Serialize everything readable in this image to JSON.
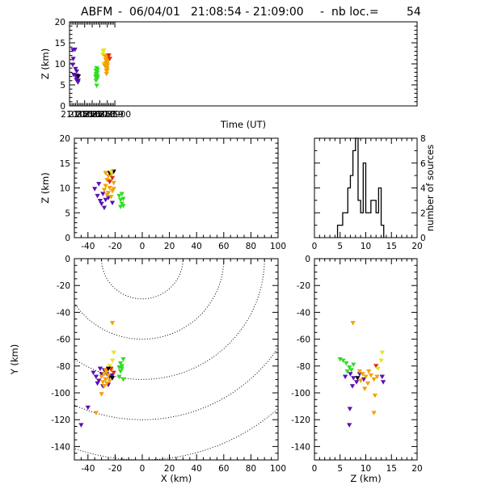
{
  "title": {
    "station": "ABFM",
    "date": "06/04/01",
    "time_range": "21:08:54 - 21:09:00",
    "count_label": "nb loc.=",
    "count": "54"
  },
  "palette": {
    "purple": "#5a10b0",
    "orange": "#f3a200",
    "green": "#33dd22",
    "yellow": "#e6e620",
    "red": "#e02a10",
    "black": "#000000"
  },
  "chart_data": [
    {
      "id": "time-height",
      "type": "scatter",
      "xlabel": "Time (UT)",
      "ylabel": "Z (km)",
      "xlim": [
        210854.0,
        210900.0
      ],
      "ylim": [
        0,
        20
      ],
      "x_ticks": [
        {
          "v": 210855,
          "label": "210855"
        },
        {
          "v": 210856,
          "label": "210856"
        },
        {
          "v": 210857,
          "label": "210857"
        },
        {
          "v": 210858,
          "label": "210858"
        },
        {
          "v": 210859,
          "label": "210859"
        },
        {
          "v": 210860,
          "label": "210900"
        }
      ],
      "y_ticks": [
        0,
        5,
        10,
        15,
        20
      ],
      "points": [
        {
          "t": 210854.45,
          "z": 13.3,
          "c": "purple"
        },
        {
          "t": 210854.72,
          "z": 13.4,
          "c": "purple"
        },
        {
          "t": 210854.42,
          "z": 9.8,
          "c": "purple"
        },
        {
          "t": 210854.5,
          "z": 11.2,
          "c": "purple"
        },
        {
          "t": 210854.55,
          "z": 7.4,
          "c": "purple"
        },
        {
          "t": 210854.8,
          "z": 8.8,
          "c": "purple"
        },
        {
          "t": 210854.88,
          "z": 7.0,
          "c": "purple"
        },
        {
          "t": 210854.9,
          "z": 6.2,
          "c": "purple"
        },
        {
          "t": 210854.95,
          "z": 8.2,
          "c": "purple"
        },
        {
          "t": 210854.98,
          "z": 6.6,
          "c": "purple"
        },
        {
          "t": 210855.02,
          "z": 7.2,
          "c": "purple"
        },
        {
          "t": 210855.08,
          "z": 6.8,
          "c": "purple"
        },
        {
          "t": 210855.12,
          "z": 5.6,
          "c": "purple"
        },
        {
          "t": 210855.16,
          "z": 6.0,
          "c": "purple"
        },
        {
          "t": 210855.18,
          "z": 7.0,
          "c": "black"
        },
        {
          "t": 210857.45,
          "z": 7.0,
          "c": "green"
        },
        {
          "t": 210857.48,
          "z": 8.4,
          "c": "green"
        },
        {
          "t": 210857.5,
          "z": 6.0,
          "c": "green"
        },
        {
          "t": 210857.52,
          "z": 7.6,
          "c": "green"
        },
        {
          "t": 210857.55,
          "z": 6.6,
          "c": "green"
        },
        {
          "t": 210857.58,
          "z": 9.0,
          "c": "green"
        },
        {
          "t": 210857.6,
          "z": 4.8,
          "c": "green"
        },
        {
          "t": 210857.62,
          "z": 7.2,
          "c": "green"
        },
        {
          "t": 210857.65,
          "z": 6.4,
          "c": "green"
        },
        {
          "t": 210857.68,
          "z": 7.9,
          "c": "green"
        },
        {
          "t": 210857.7,
          "z": 8.6,
          "c": "green"
        },
        {
          "t": 210857.72,
          "z": 6.9,
          "c": "green"
        },
        {
          "t": 210858.4,
          "z": 12.2,
          "c": "yellow"
        },
        {
          "t": 210858.45,
          "z": 13.0,
          "c": "yellow"
        },
        {
          "t": 210858.55,
          "z": 13.2,
          "c": "yellow"
        },
        {
          "t": 210858.52,
          "z": 10.0,
          "c": "yellow"
        },
        {
          "t": 210858.65,
          "z": 9.6,
          "c": "orange"
        },
        {
          "t": 210858.72,
          "z": 11.8,
          "c": "orange"
        },
        {
          "t": 210858.78,
          "z": 11.0,
          "c": "orange"
        },
        {
          "t": 210858.8,
          "z": 10.2,
          "c": "orange"
        },
        {
          "t": 210858.84,
          "z": 9.4,
          "c": "orange"
        },
        {
          "t": 210858.86,
          "z": 8.4,
          "c": "orange"
        },
        {
          "t": 210858.88,
          "z": 10.8,
          "c": "orange"
        },
        {
          "t": 210858.9,
          "z": 7.6,
          "c": "orange"
        },
        {
          "t": 210858.92,
          "z": 9.0,
          "c": "orange"
        },
        {
          "t": 210858.95,
          "z": 11.6,
          "c": "orange"
        },
        {
          "t": 210858.97,
          "z": 8.8,
          "c": "orange"
        },
        {
          "t": 210859.0,
          "z": 10.0,
          "c": "orange"
        },
        {
          "t": 210859.02,
          "z": 9.6,
          "c": "orange"
        },
        {
          "t": 210859.05,
          "z": 12.0,
          "c": "orange"
        },
        {
          "t": 210859.1,
          "z": 10.8,
          "c": "orange"
        },
        {
          "t": 210859.16,
          "z": 11.8,
          "c": "orange"
        },
        {
          "t": 210858.98,
          "z": 8.4,
          "c": "orange"
        },
        {
          "t": 210859.2,
          "z": 12.0,
          "c": "red"
        },
        {
          "t": 210859.33,
          "z": 11.2,
          "c": "red"
        }
      ]
    },
    {
      "id": "x-height",
      "type": "scatter",
      "xlabel": "",
      "ylabel": "Z (km)",
      "xlim": [
        -50,
        100
      ],
      "ylim": [
        0,
        20
      ],
      "x_ticks": [
        -40,
        -20,
        0,
        20,
        40,
        60,
        80,
        100
      ],
      "y_ticks": [
        0,
        5,
        10,
        15,
        20
      ],
      "points": [
        {
          "x": -35,
          "z": 9.8,
          "c": "purple"
        },
        {
          "x": -33,
          "z": 8.4,
          "c": "purple"
        },
        {
          "x": -31,
          "z": 7.4,
          "c": "purple"
        },
        {
          "x": -32,
          "z": 10.8,
          "c": "purple"
        },
        {
          "x": -29,
          "z": 8.8,
          "c": "purple"
        },
        {
          "x": -30,
          "z": 6.8,
          "c": "purple"
        },
        {
          "x": -27,
          "z": 7.6,
          "c": "purple"
        },
        {
          "x": -28,
          "z": 6.0,
          "c": "purple"
        },
        {
          "x": -25,
          "z": 8.0,
          "c": "purple"
        },
        {
          "x": -22,
          "z": 7.0,
          "c": "purple"
        },
        {
          "x": -26,
          "z": 11.6,
          "c": "orange"
        },
        {
          "x": -28,
          "z": 9.6,
          "c": "orange"
        },
        {
          "x": -27,
          "z": 10.4,
          "c": "orange"
        },
        {
          "x": -25,
          "z": 9.0,
          "c": "orange"
        },
        {
          "x": -26,
          "z": 8.6,
          "c": "orange"
        },
        {
          "x": -24,
          "z": 10.0,
          "c": "orange"
        },
        {
          "x": -22,
          "z": 9.4,
          "c": "orange"
        },
        {
          "x": -21,
          "z": 11.0,
          "c": "orange"
        },
        {
          "x": -23,
          "z": 12.6,
          "c": "orange"
        },
        {
          "x": -24,
          "z": 11.4,
          "c": "orange"
        },
        {
          "x": -23,
          "z": 8.2,
          "c": "orange"
        },
        {
          "x": -21,
          "z": 9.8,
          "c": "orange"
        },
        {
          "x": -25,
          "z": 12.4,
          "c": "orange"
        },
        {
          "x": -27,
          "z": 13.0,
          "c": "orange"
        },
        {
          "x": -24,
          "z": 13.0,
          "c": "black"
        },
        {
          "x": -21,
          "z": 13.3,
          "c": "black"
        },
        {
          "x": -24,
          "z": 11.2,
          "c": "red"
        },
        {
          "x": -22,
          "z": 12.0,
          "c": "red"
        },
        {
          "x": -23,
          "z": 13.2,
          "c": "yellow"
        },
        {
          "x": -17,
          "z": 8.4,
          "c": "green"
        },
        {
          "x": -16,
          "z": 7.6,
          "c": "green"
        },
        {
          "x": -15,
          "z": 6.8,
          "c": "green"
        },
        {
          "x": -14,
          "z": 7.8,
          "c": "green"
        },
        {
          "x": -16,
          "z": 6.2,
          "c": "green"
        },
        {
          "x": -15,
          "z": 8.8,
          "c": "green"
        },
        {
          "x": -14,
          "z": 6.4,
          "c": "green"
        }
      ]
    },
    {
      "id": "height-histogram",
      "type": "bar",
      "xlabel": "",
      "ylabel": "number of sources",
      "xlim": [
        0,
        20
      ],
      "ylim": [
        0,
        8
      ],
      "x_ticks": [
        0,
        5,
        10,
        15,
        20
      ],
      "y_ticks": [
        0,
        2,
        4,
        6,
        8
      ],
      "bin_edges": [
        4.5,
        5.0,
        5.5,
        6.0,
        6.5,
        7.0,
        7.5,
        8.0,
        8.5,
        9.0,
        9.5,
        10.0,
        10.5,
        11.0,
        11.5,
        12.0,
        12.5,
        13.0,
        13.5
      ],
      "counts": [
        1,
        1,
        2,
        2,
        4,
        5,
        7,
        8,
        3,
        2,
        6,
        2,
        2,
        3,
        3,
        2,
        4,
        1
      ]
    },
    {
      "id": "plan-view",
      "type": "scatter",
      "xlabel": "X (km)",
      "ylabel": "Y (km)",
      "xlim": [
        -50,
        100
      ],
      "ylim": [
        -150,
        0
      ],
      "x_ticks": [
        -40,
        -20,
        0,
        20,
        40,
        60,
        80,
        100
      ],
      "y_ticks": [
        -140,
        -120,
        -100,
        -80,
        -60,
        -40,
        -20,
        0
      ],
      "range_rings_km": [
        30,
        60,
        90,
        120,
        150
      ],
      "points": [
        {
          "x": -45,
          "y": -124,
          "c": "purple"
        },
        {
          "x": -40,
          "y": -111,
          "c": "purple"
        },
        {
          "x": -36,
          "y": -85,
          "c": "purple"
        },
        {
          "x": -34,
          "y": -88,
          "c": "purple"
        },
        {
          "x": -33,
          "y": -93,
          "c": "purple"
        },
        {
          "x": -31,
          "y": -82,
          "c": "purple"
        },
        {
          "x": -32,
          "y": -91,
          "c": "purple"
        },
        {
          "x": -30,
          "y": -86,
          "c": "purple"
        },
        {
          "x": -29,
          "y": -95,
          "c": "purple"
        },
        {
          "x": -28,
          "y": -83,
          "c": "purple"
        },
        {
          "x": -27,
          "y": -90,
          "c": "purple"
        },
        {
          "x": -26,
          "y": -86,
          "c": "purple"
        },
        {
          "x": -25,
          "y": -94,
          "c": "purple"
        },
        {
          "x": -24,
          "y": -88,
          "c": "purple"
        },
        {
          "x": -22,
          "y": -87,
          "c": "purple"
        },
        {
          "x": -34,
          "y": -115,
          "c": "orange"
        },
        {
          "x": -30,
          "y": -101,
          "c": "orange"
        },
        {
          "x": -30,
          "y": -88,
          "c": "orange"
        },
        {
          "x": -29,
          "y": -92,
          "c": "orange"
        },
        {
          "x": -28,
          "y": -86,
          "c": "orange"
        },
        {
          "x": -27,
          "y": -90,
          "c": "orange"
        },
        {
          "x": -28,
          "y": -95,
          "c": "orange"
        },
        {
          "x": -26,
          "y": -84,
          "c": "orange"
        },
        {
          "x": -27,
          "y": -83,
          "c": "orange"
        },
        {
          "x": -25,
          "y": -87,
          "c": "orange"
        },
        {
          "x": -26,
          "y": -93,
          "c": "orange"
        },
        {
          "x": -24,
          "y": -91,
          "c": "orange"
        },
        {
          "x": -23,
          "y": -83,
          "c": "orange"
        },
        {
          "x": -22,
          "y": -48,
          "c": "orange"
        },
        {
          "x": -22,
          "y": -76,
          "c": "yellow"
        },
        {
          "x": -21,
          "y": -70,
          "c": "yellow"
        },
        {
          "x": -24,
          "y": -80,
          "c": "yellow"
        },
        {
          "x": -23,
          "y": -82,
          "c": "red"
        },
        {
          "x": -21,
          "y": -85,
          "c": "red"
        },
        {
          "x": -22,
          "y": -89,
          "c": "black"
        },
        {
          "x": -25,
          "y": -82,
          "c": "black"
        },
        {
          "x": -17,
          "y": -88,
          "c": "green"
        },
        {
          "x": -16,
          "y": -78,
          "c": "green"
        },
        {
          "x": -15,
          "y": -82,
          "c": "green"
        },
        {
          "x": -14,
          "y": -75,
          "c": "green"
        },
        {
          "x": -16,
          "y": -84,
          "c": "green"
        },
        {
          "x": -15,
          "y": -80,
          "c": "green"
        },
        {
          "x": -14,
          "y": -90,
          "c": "green"
        },
        {
          "x": -17,
          "y": -81,
          "c": "green"
        }
      ]
    },
    {
      "id": "height-y",
      "type": "scatter",
      "xlabel": "Z (km)",
      "ylabel": "",
      "xlim": [
        0,
        20
      ],
      "ylim": [
        -150,
        0
      ],
      "x_ticks": [
        0,
        5,
        10,
        15,
        20
      ],
      "y_ticks": [
        -140,
        -120,
        -100,
        -80,
        -60,
        -40,
        -20,
        0
      ],
      "points": [
        {
          "z": 7.5,
          "y": -48,
          "c": "orange"
        },
        {
          "z": 6.8,
          "y": -124,
          "c": "purple"
        },
        {
          "z": 6.9,
          "y": -112,
          "c": "purple"
        },
        {
          "z": 11.8,
          "y": -102,
          "c": "orange"
        },
        {
          "z": 11.6,
          "y": -115,
          "c": "orange"
        },
        {
          "z": 5.0,
          "y": -75,
          "c": "green"
        },
        {
          "z": 5.6,
          "y": -76,
          "c": "green"
        },
        {
          "z": 6.2,
          "y": -78,
          "c": "green"
        },
        {
          "z": 6.8,
          "y": -81,
          "c": "green"
        },
        {
          "z": 7.2,
          "y": -83,
          "c": "green"
        },
        {
          "z": 6.4,
          "y": -84,
          "c": "green"
        },
        {
          "z": 7.6,
          "y": -79,
          "c": "green"
        },
        {
          "z": 12.0,
          "y": -80,
          "c": "red"
        },
        {
          "z": 13.2,
          "y": -70,
          "c": "yellow"
        },
        {
          "z": 13.0,
          "y": -76,
          "c": "yellow"
        },
        {
          "z": 12.4,
          "y": -82,
          "c": "yellow"
        },
        {
          "z": 6.0,
          "y": -88,
          "c": "purple"
        },
        {
          "z": 7.0,
          "y": -86,
          "c": "purple"
        },
        {
          "z": 7.6,
          "y": -89,
          "c": "purple"
        },
        {
          "z": 8.2,
          "y": -92,
          "c": "purple"
        },
        {
          "z": 8.8,
          "y": -86,
          "c": "purple"
        },
        {
          "z": 7.4,
          "y": -95,
          "c": "purple"
        },
        {
          "z": 9.6,
          "y": -90,
          "c": "purple"
        },
        {
          "z": 8.8,
          "y": -84,
          "c": "orange"
        },
        {
          "z": 9.4,
          "y": -86,
          "c": "orange"
        },
        {
          "z": 10.0,
          "y": -88,
          "c": "orange"
        },
        {
          "z": 10.6,
          "y": -84,
          "c": "orange"
        },
        {
          "z": 11.0,
          "y": -87,
          "c": "orange"
        },
        {
          "z": 11.6,
          "y": -90,
          "c": "orange"
        },
        {
          "z": 9.0,
          "y": -91,
          "c": "orange"
        },
        {
          "z": 10.4,
          "y": -93,
          "c": "orange"
        },
        {
          "z": 12.2,
          "y": -88,
          "c": "orange"
        },
        {
          "z": 8.4,
          "y": -89,
          "c": "black"
        },
        {
          "z": 13.2,
          "y": -88,
          "c": "purple"
        },
        {
          "z": 13.4,
          "y": -92,
          "c": "purple"
        },
        {
          "z": 9.8,
          "y": -97,
          "c": "orange"
        }
      ]
    }
  ]
}
